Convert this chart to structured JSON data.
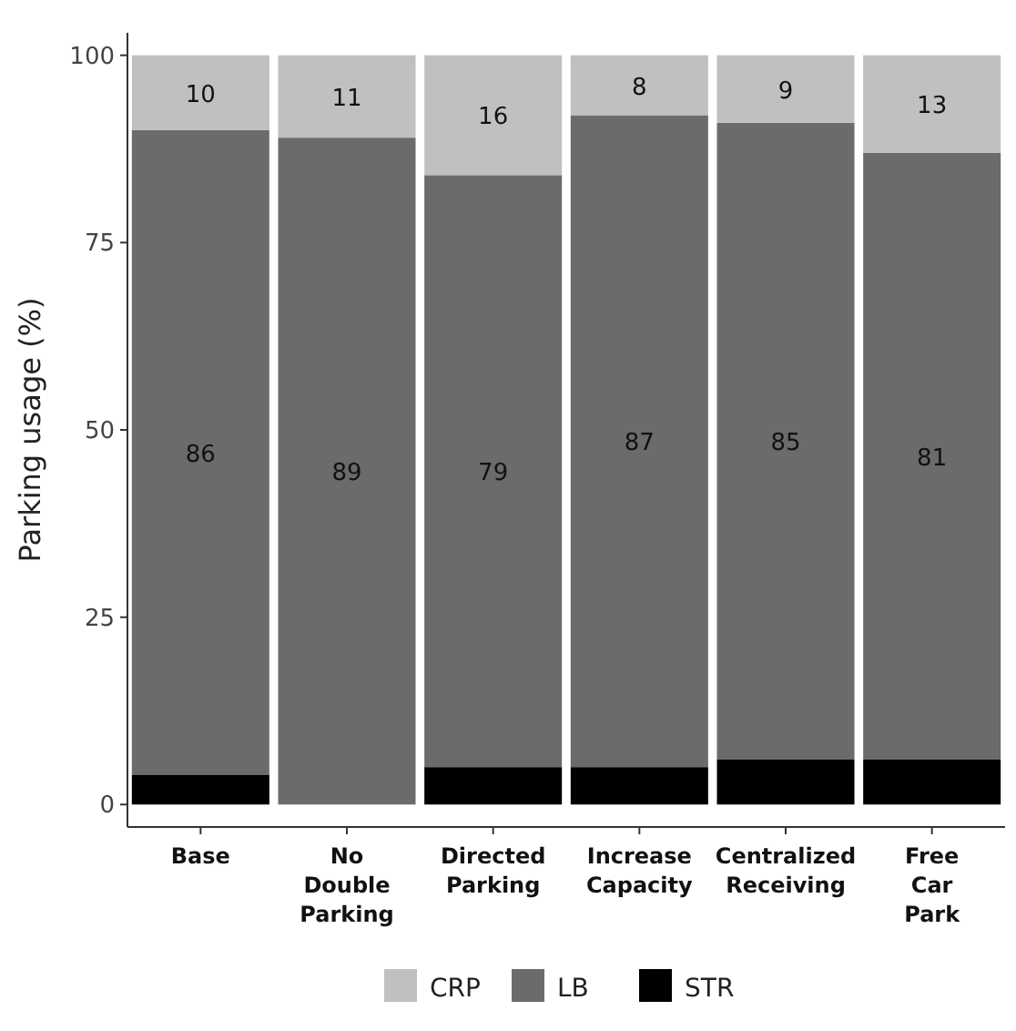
{
  "chart_data": {
    "type": "bar",
    "stacked": true,
    "ylabel": "Parking usage (%)",
    "categories": [
      "Base",
      "No Double Parking",
      "Directed Parking",
      "Increase Capacity",
      "Centralized Receiving",
      "Free Car Park"
    ],
    "series": [
      {
        "name": "STR",
        "color": "#000000",
        "values": [
          4,
          0,
          5,
          5,
          6,
          6
        ],
        "value_labels": [
          null,
          null,
          null,
          null,
          null,
          null
        ]
      },
      {
        "name": "LB",
        "color": "#6b6b6b",
        "values": [
          86,
          89,
          79,
          87,
          85,
          81
        ],
        "value_labels": [
          "86",
          "89",
          "79",
          "87",
          "85",
          "81"
        ]
      },
      {
        "name": "CRP",
        "color": "#c0c0c0",
        "values": [
          10,
          11,
          16,
          8,
          9,
          13
        ],
        "value_labels": [
          "10",
          "11",
          "16",
          "8",
          "9",
          "13"
        ]
      }
    ],
    "ylim": [
      -3,
      103
    ],
    "yticks": [
      0,
      25,
      50,
      75,
      100
    ],
    "grid": false,
    "legend": "bottom"
  }
}
